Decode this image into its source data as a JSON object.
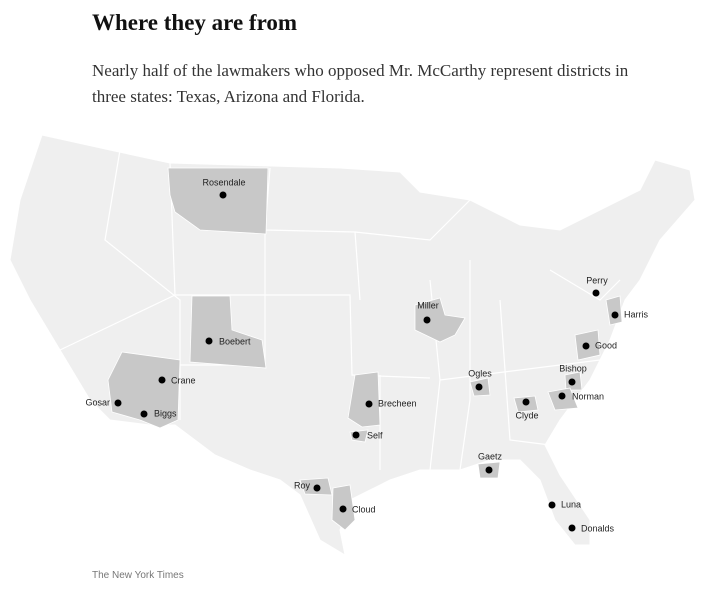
{
  "title": "Where they are from",
  "subtitle": "Nearly half of the lawmakers who opposed Mr. McCarthy represent districts in three states: Texas, Arizona and Florida.",
  "lawmakers": [
    "Rosendale",
    "Boebert",
    "Crane",
    "Gosar",
    "Biggs",
    "Miller",
    "Perry",
    "Harris",
    "Good",
    "Ogles",
    "Bishop",
    "Norman",
    "Clyde",
    "Brecheen",
    "Self",
    "Gaetz",
    "Roy",
    "Cloud",
    "Luna",
    "Donalds"
  ],
  "source": "The New York Times"
}
